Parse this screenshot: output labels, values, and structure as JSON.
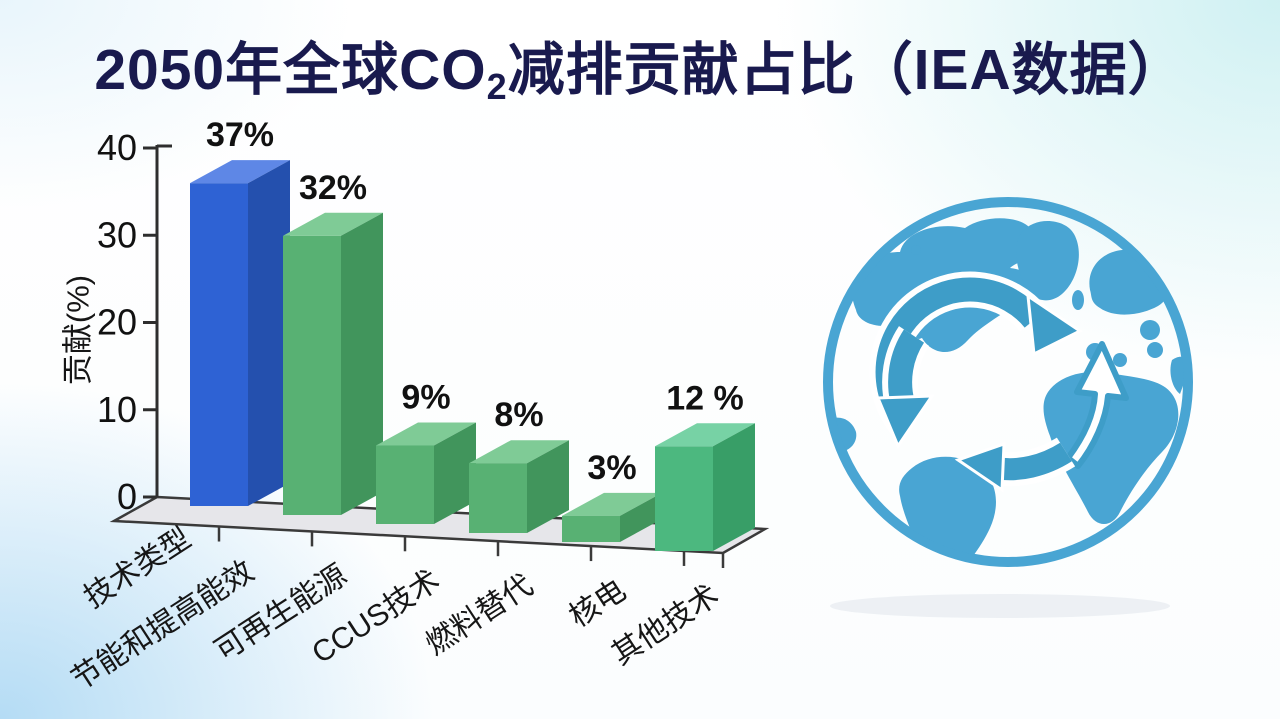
{
  "title": {
    "prefix": "2050年全球CO",
    "subscript": "2",
    "suffix": "减排贡献占比（IEA数据）"
  },
  "chart_data": {
    "type": "bar",
    "title": "2050年全球CO2减排贡献占比（IEA数据）",
    "xlabel": "技术类型",
    "ylabel": "贡献(%)",
    "ylim": [
      0,
      40
    ],
    "yticks": [
      0,
      10,
      20,
      30,
      40
    ],
    "categories": [
      "节能和提高能效",
      "可再生能源",
      "CCUS技术",
      "燃料替代",
      "核电",
      "其他技术"
    ],
    "values": [
      37,
      32,
      9,
      8,
      3,
      12
    ],
    "value_labels": [
      "37%",
      "32%",
      "9%",
      "8%",
      "3%",
      "12 %"
    ],
    "bar_colors": [
      "blue",
      "green",
      "green",
      "green",
      "green",
      "teal"
    ],
    "grid": false,
    "legend": "none",
    "style": "3d-bars"
  },
  "palette": {
    "blue": {
      "front": "#2e62d4",
      "top": "#5e87e6",
      "side": "#2450ae"
    },
    "green": {
      "front": "#58b173",
      "top": "#7fcb96",
      "side": "#41955c"
    },
    "teal": {
      "front": "#4cb87f",
      "top": "#77d2a5",
      "side": "#389e67"
    },
    "axis": "#2e2e2e",
    "floor": "#e6e6ea",
    "label": "#111111",
    "title_color": "#191a4e",
    "globe_blue": "#49a5d3",
    "globe_arrow": "#3e9dc8"
  },
  "globe": {
    "icon": "globe-with-cycle-arrows"
  }
}
